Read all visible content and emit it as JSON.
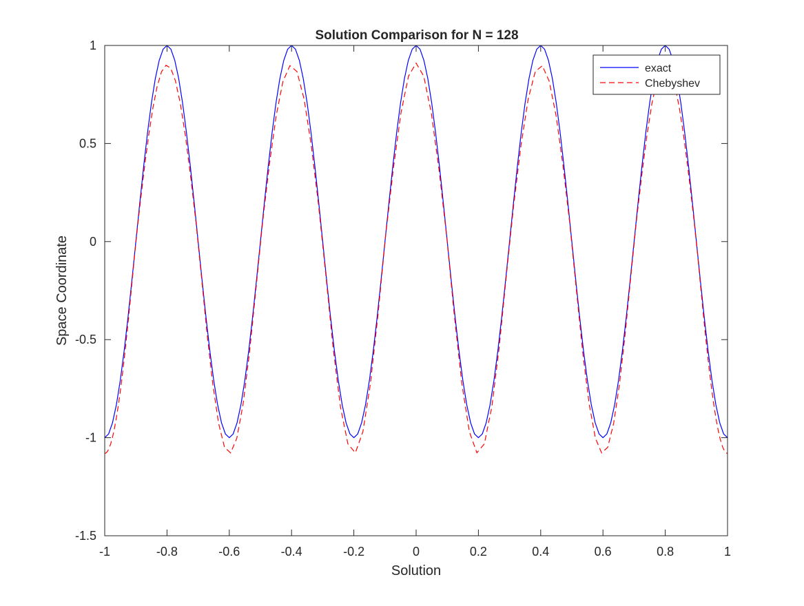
{
  "chart_data": {
    "type": "line",
    "title": "Solution Comparison for N = 128",
    "xlabel": "Solution",
    "ylabel": "Space Coordinate",
    "xlim": [
      -1,
      1
    ],
    "ylim": [
      -1.5,
      1
    ],
    "xticks": [
      -1,
      -0.8,
      -0.6,
      -0.4,
      -0.2,
      0,
      0.2,
      0.4,
      0.6,
      0.8,
      1
    ],
    "xtick_labels": [
      "-1",
      "-0.8",
      "-0.6",
      "-0.4",
      "-0.2",
      "0",
      "0.2",
      "0.4",
      "0.6",
      "0.8",
      "1"
    ],
    "yticks": [
      -1.5,
      -1,
      -0.5,
      0,
      0.5,
      1
    ],
    "ytick_labels": [
      "-1.5",
      "-1",
      "-0.5",
      "0",
      "0.5",
      "1"
    ],
    "grid": false,
    "legend_position": "top-right",
    "function": "cos(5*pi*x)",
    "series": [
      {
        "name": "exact",
        "color": "#0000ff",
        "style": "solid",
        "amplitude": 1.0,
        "samples": 161
      },
      {
        "name": "Chebyshev",
        "color": "#ff0000",
        "style": "dashed",
        "peak_values": [
          0.9,
          0.9,
          0.91,
          0.9,
          0.9
        ],
        "trough_values": [
          -1.08,
          -1.08,
          -1.08,
          -1.08,
          -1.08,
          -1.08
        ],
        "samples": 129
      }
    ]
  },
  "colors": {
    "axis": "#262626",
    "background": "#ffffff"
  }
}
